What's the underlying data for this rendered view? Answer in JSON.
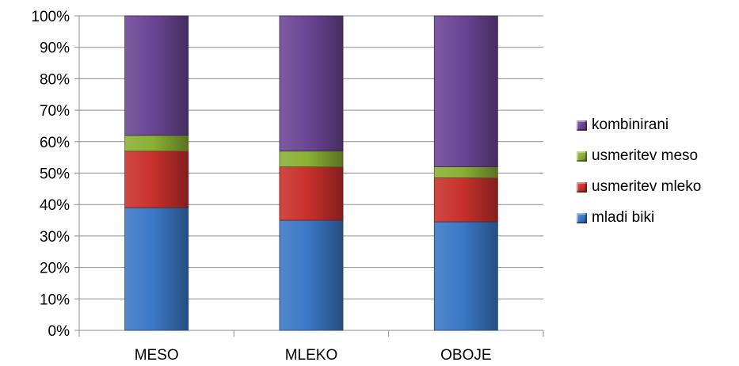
{
  "chart_data": {
    "type": "bar",
    "stacked": true,
    "percent": true,
    "categories": [
      "MESO",
      "MLEKO",
      "OBOJE"
    ],
    "series": [
      {
        "name": "mladi biki",
        "values": [
          39,
          35,
          34.5
        ],
        "color": "#3a78c6"
      },
      {
        "name": "usmeritev mleko",
        "values": [
          18,
          17,
          14
        ],
        "color": "#c8302c"
      },
      {
        "name": "usmeritev meso",
        "values": [
          5,
          5,
          3.5
        ],
        "color": "#8ab034"
      },
      {
        "name": "kombinirani",
        "values": [
          38,
          43,
          48
        ],
        "color": "#6b4594"
      }
    ],
    "y_ticks": [
      "0%",
      "10%",
      "20%",
      "30%",
      "40%",
      "50%",
      "60%",
      "70%",
      "80%",
      "90%",
      "100%"
    ],
    "ylim": [
      0,
      100
    ],
    "legend": [
      "kombinirani",
      "usmeritev meso",
      "usmeritev mleko",
      "mladi biki"
    ],
    "legend_placement": "right",
    "grid": true
  }
}
